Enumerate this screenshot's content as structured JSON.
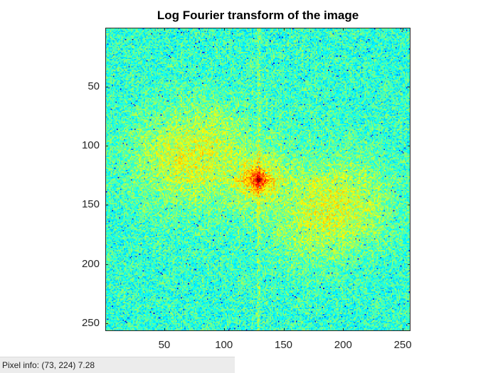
{
  "figure": {
    "title": "Log Fourier transform of the image"
  },
  "status_bar": {
    "label": "Pixel info:",
    "coords": "(73, 224)",
    "value": "7.28"
  },
  "chart_data": {
    "type": "heatmap",
    "title": "Log Fourier transform of the image",
    "xlabel": "",
    "ylabel": "",
    "xlim": [
      1,
      256
    ],
    "ylim": [
      1,
      256
    ],
    "y_reversed": true,
    "x_ticks": [
      50,
      100,
      150,
      200,
      250
    ],
    "y_ticks": [
      50,
      100,
      150,
      200,
      250
    ],
    "colormap": "jet",
    "peak_center": [
      128,
      128
    ],
    "colors": {
      "background": "#22d6b8",
      "peak": "#c00000",
      "high": "#ffd800",
      "mid": "#b8f040",
      "low": "#1e78e0"
    }
  }
}
